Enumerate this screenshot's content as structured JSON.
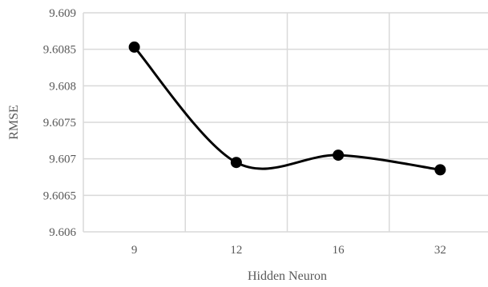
{
  "chart_data": {
    "type": "line",
    "categories": [
      "9",
      "12",
      "16",
      "32"
    ],
    "series": [
      {
        "values": [
          9.60853,
          9.60695,
          9.60705,
          9.60685
        ],
        "color": "#000000",
        "smooth": true,
        "marker": "circle"
      }
    ],
    "xlabel": "Hidden Neuron",
    "ylabel": "RMSE",
    "ylim": [
      9.606,
      9.609
    ],
    "yticks": [
      "9.606",
      "9.6065",
      "9.607",
      "9.6075",
      "9.608",
      "9.6085",
      "9.609"
    ],
    "grid": true,
    "grid_color": "#d9d9d9",
    "legend": "none"
  }
}
